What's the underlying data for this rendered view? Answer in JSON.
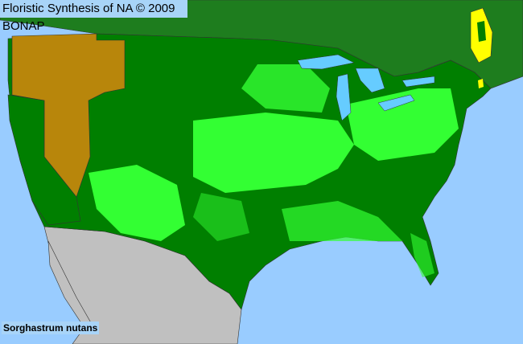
{
  "header": {
    "title": "Floristic Synthesis of NA © 2009 BONAP"
  },
  "map": {
    "species": "Sorghastrum nutans",
    "colors": {
      "ocean": "#99ccff",
      "present_native_state": "#007f00",
      "present_county": "#33ff33",
      "absent_state": "#b8860b",
      "rare_or_noxious": "#ffff00",
      "canada": "#1e7d1e",
      "mexico": "#c0c0c0",
      "lakes": "#66ccff"
    }
  }
}
